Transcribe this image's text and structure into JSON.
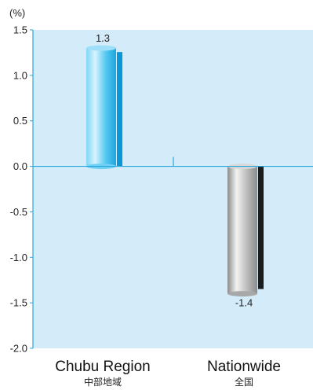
{
  "chart_data": {
    "type": "bar",
    "unit_label": "(%)",
    "categories": [
      {
        "name": "Chubu Region",
        "name_jp": "中部地域"
      },
      {
        "name": "Nationwide",
        "name_jp": "全国"
      }
    ],
    "values": [
      1.3,
      -1.4
    ],
    "value_labels": [
      "1.3",
      "-1.4"
    ],
    "ylim": [
      -2.0,
      1.5
    ],
    "yticks": [
      "1.5",
      "1.0",
      "0.5",
      "0.0",
      "-0.5",
      "-1.0",
      "-1.5",
      "-2.0"
    ],
    "grid": false,
    "legend": "none",
    "colors": {
      "plot_background": "#d4ecf9",
      "axis": "#2aa7dd",
      "bar_positive_light": "#b8e6fa",
      "bar_positive_mid": "#3cc0ee",
      "bar_positive_dark": "#0a97d8",
      "bar_negative_light": "#e9e9e9",
      "bar_negative_mid": "#a9a9a9",
      "bar_negative_dark": "#1c1c1c"
    }
  }
}
